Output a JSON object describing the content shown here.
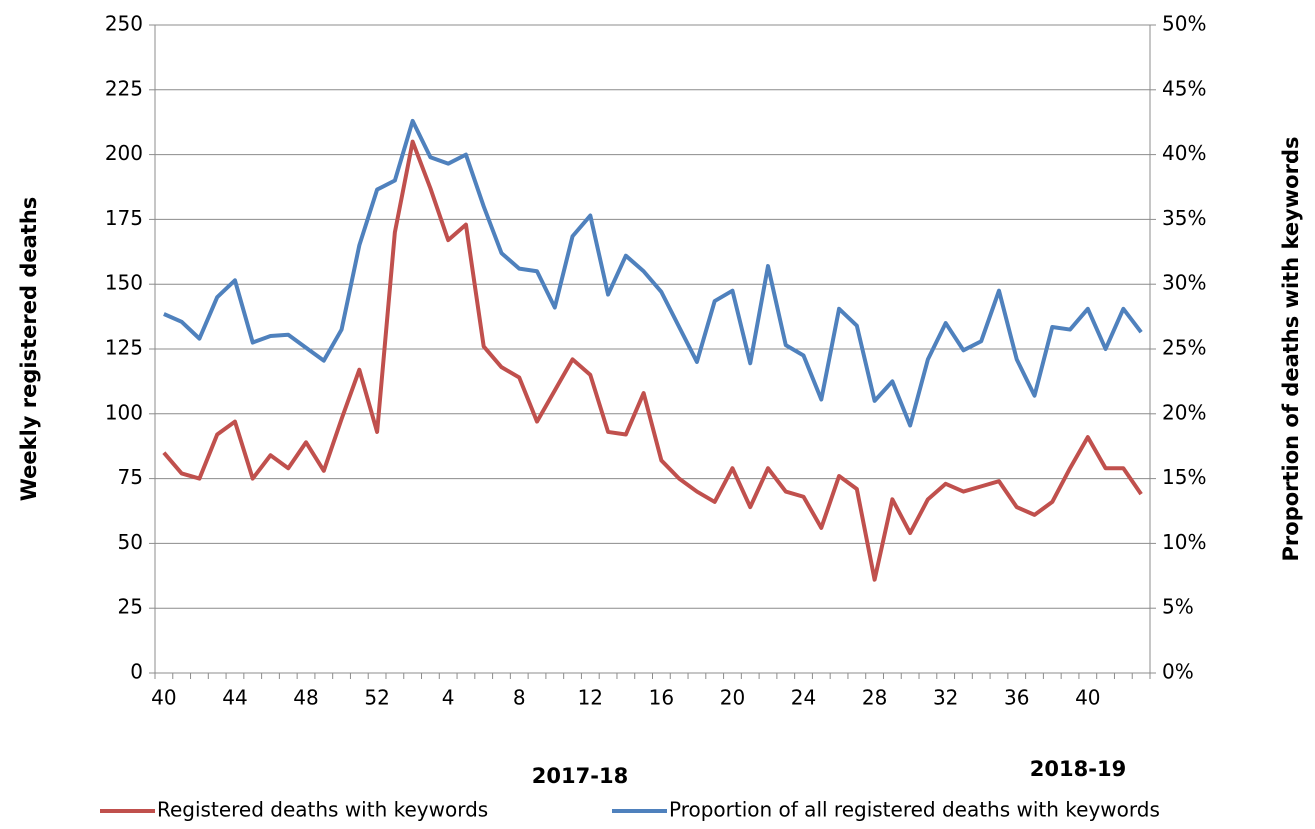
{
  "chart_data": {
    "type": "line",
    "y_label": "Weekly registered deaths",
    "y2_label": "Proportion of deaths with keywords",
    "annotations": [
      "2017-18",
      "2018-19"
    ],
    "categories": [
      "40",
      null,
      null,
      null,
      "44",
      null,
      null,
      null,
      "48",
      null,
      null,
      null,
      "52",
      null,
      null,
      null,
      "4",
      null,
      null,
      null,
      "8",
      null,
      null,
      null,
      "12",
      null,
      null,
      null,
      "16",
      null,
      null,
      null,
      "20",
      null,
      null,
      null,
      "24",
      null,
      null,
      null,
      "28",
      null,
      null,
      null,
      "32",
      null,
      null,
      null,
      "36",
      null,
      null,
      null,
      "40",
      null,
      null,
      null
    ],
    "series": [
      {
        "name": "Registered deaths with keywords",
        "color": "#c0504d",
        "values": [
          85,
          77,
          75,
          92,
          97,
          75,
          84,
          79,
          89,
          78,
          98,
          117,
          93,
          170,
          205,
          187,
          167,
          173,
          126,
          118,
          114,
          97,
          109,
          121,
          115,
          93,
          92,
          108,
          82,
          75,
          70,
          66,
          79,
          64,
          79,
          70,
          68,
          56,
          76,
          71,
          36,
          67,
          54,
          67,
          73,
          70,
          72,
          74,
          64,
          61,
          66,
          79,
          91,
          79,
          79,
          69
        ]
      },
      {
        "name": "Proportion of all registered deaths with keywords",
        "color": "#4f81bd",
        "axis": "y2",
        "values": [
          27.7,
          27.1,
          25.8,
          29,
          30.3,
          25.5,
          26,
          26.1,
          25.1,
          24.1,
          26.5,
          33,
          37.3,
          38,
          42.6,
          39.8,
          39.3,
          40,
          36,
          32.4,
          31.2,
          31,
          28.2,
          33.7,
          35.3,
          29.2,
          32.2,
          31,
          29.4,
          26.7,
          24,
          28.7,
          29.5,
          23.9,
          31.4,
          25.3,
          24.5,
          21.1,
          28.1,
          26.8,
          21,
          22.5,
          19.1,
          24.2,
          27,
          24.9,
          25.6,
          29.5,
          24.2,
          21.4,
          26.7,
          26.5,
          28.1,
          25,
          28.1,
          26.3
        ]
      }
    ],
    "ylim": [
      0,
      250
    ],
    "yticks": [
      0,
      25,
      50,
      75,
      100,
      125,
      150,
      175,
      200,
      225,
      250
    ],
    "y2lim": [
      0,
      50
    ],
    "y2ticks": [
      {
        "value": 0,
        "label": "0%"
      },
      {
        "value": 5,
        "label": "5%"
      },
      {
        "value": 10,
        "label": "10%"
      },
      {
        "value": 15,
        "label": "15%"
      },
      {
        "value": 20,
        "label": "20%"
      },
      {
        "value": 25,
        "label": "25%"
      },
      {
        "value": 30,
        "label": "30%"
      },
      {
        "value": 35,
        "label": "35%"
      },
      {
        "value": 40,
        "label": "40%"
      },
      {
        "value": 45,
        "label": "45%"
      },
      {
        "value": 50,
        "label": "50%"
      }
    ],
    "grid": true,
    "legend": "bottom"
  }
}
